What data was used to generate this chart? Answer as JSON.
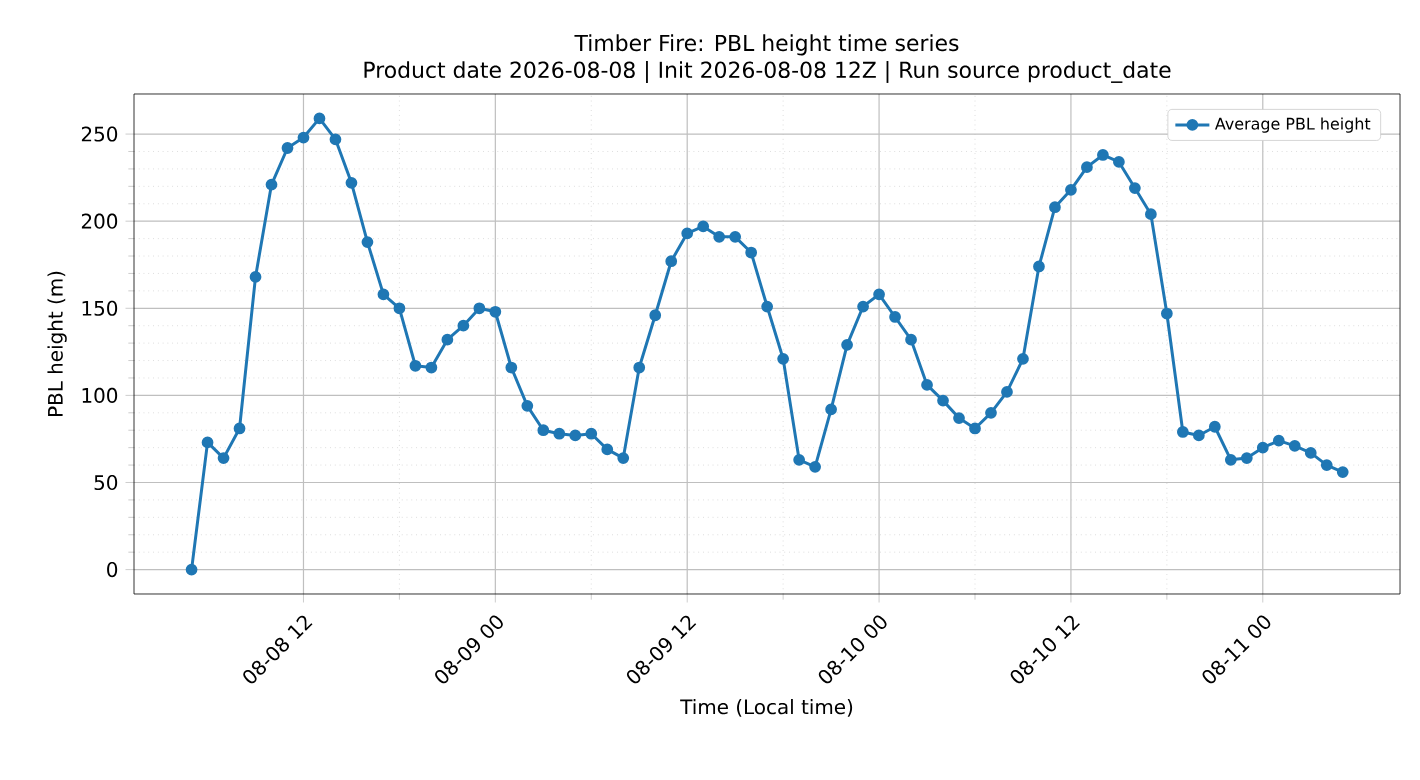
{
  "chart_data": {
    "type": "line",
    "title": "Timber Fire: PBL height time series",
    "subtitle": "Product date 2026-08-08 | Init 2026-08-08 12Z | Run source product_date",
    "xlabel": "Time (Local time)",
    "ylabel": "PBL height (m)",
    "x": [
      "2026-08-08T05:00",
      "2026-08-08T06:00",
      "2026-08-08T07:00",
      "2026-08-08T08:00",
      "2026-08-08T09:00",
      "2026-08-08T10:00",
      "2026-08-08T11:00",
      "2026-08-08T12:00",
      "2026-08-08T13:00",
      "2026-08-08T14:00",
      "2026-08-08T15:00",
      "2026-08-08T16:00",
      "2026-08-08T17:00",
      "2026-08-08T18:00",
      "2026-08-08T19:00",
      "2026-08-08T20:00",
      "2026-08-08T21:00",
      "2026-08-08T22:00",
      "2026-08-08T23:00",
      "2026-08-09T00:00",
      "2026-08-09T01:00",
      "2026-08-09T02:00",
      "2026-08-09T03:00",
      "2026-08-09T04:00",
      "2026-08-09T05:00",
      "2026-08-09T06:00",
      "2026-08-09T07:00",
      "2026-08-09T08:00",
      "2026-08-09T09:00",
      "2026-08-09T10:00",
      "2026-08-09T11:00",
      "2026-08-09T12:00",
      "2026-08-09T13:00",
      "2026-08-09T14:00",
      "2026-08-09T15:00",
      "2026-08-09T16:00",
      "2026-08-09T17:00",
      "2026-08-09T18:00",
      "2026-08-09T19:00",
      "2026-08-09T20:00",
      "2026-08-09T21:00",
      "2026-08-09T22:00",
      "2026-08-09T23:00",
      "2026-08-10T00:00",
      "2026-08-10T01:00",
      "2026-08-10T02:00",
      "2026-08-10T03:00",
      "2026-08-10T04:00",
      "2026-08-10T05:00",
      "2026-08-10T06:00",
      "2026-08-10T07:00",
      "2026-08-10T08:00",
      "2026-08-10T09:00",
      "2026-08-10T10:00",
      "2026-08-10T11:00",
      "2026-08-10T12:00",
      "2026-08-10T13:00",
      "2026-08-10T14:00",
      "2026-08-10T15:00",
      "2026-08-10T16:00",
      "2026-08-10T17:00",
      "2026-08-10T18:00",
      "2026-08-10T19:00",
      "2026-08-10T20:00",
      "2026-08-10T21:00",
      "2026-08-10T22:00",
      "2026-08-10T23:00",
      "2026-08-11T00:00",
      "2026-08-11T01:00",
      "2026-08-11T02:00",
      "2026-08-11T03:00",
      "2026-08-11T04:00",
      "2026-08-11T05:00"
    ],
    "series": [
      {
        "name": "Average PBL height",
        "color": "#1f77b4",
        "values": [
          0,
          73,
          64,
          81,
          168,
          221,
          242,
          248,
          259,
          247,
          222,
          188,
          158,
          150,
          117,
          116,
          132,
          140,
          150,
          148,
          116,
          94,
          80,
          78,
          77,
          78,
          69,
          64,
          116,
          146,
          177,
          193,
          197,
          191,
          191,
          182,
          151,
          121,
          63,
          59,
          92,
          129,
          151,
          158,
          145,
          132,
          106,
          97,
          87,
          81,
          90,
          102,
          121,
          174,
          208,
          218,
          231,
          238,
          234,
          219,
          204,
          147,
          79,
          77,
          82,
          63,
          64,
          70,
          74,
          71,
          67,
          60,
          56
        ]
      }
    ],
    "xlim": [
      "2026-08-08T01:24",
      "2026-08-11T08:35"
    ],
    "xticks": [
      {
        "value": "2026-08-08T12:00",
        "label": "08-08 12"
      },
      {
        "value": "2026-08-09T00:00",
        "label": "08-09 00"
      },
      {
        "value": "2026-08-09T12:00",
        "label": "08-09 12"
      },
      {
        "value": "2026-08-10T00:00",
        "label": "08-10 00"
      },
      {
        "value": "2026-08-10T12:00",
        "label": "08-10 12"
      },
      {
        "value": "2026-08-11T00:00",
        "label": "08-11 00"
      }
    ],
    "ylim": [
      -14,
      273
    ],
    "yticks": [
      0,
      50,
      100,
      150,
      200,
      250
    ],
    "grid": true,
    "legend": "top right",
    "marker": "circle",
    "line_style": "solid"
  }
}
